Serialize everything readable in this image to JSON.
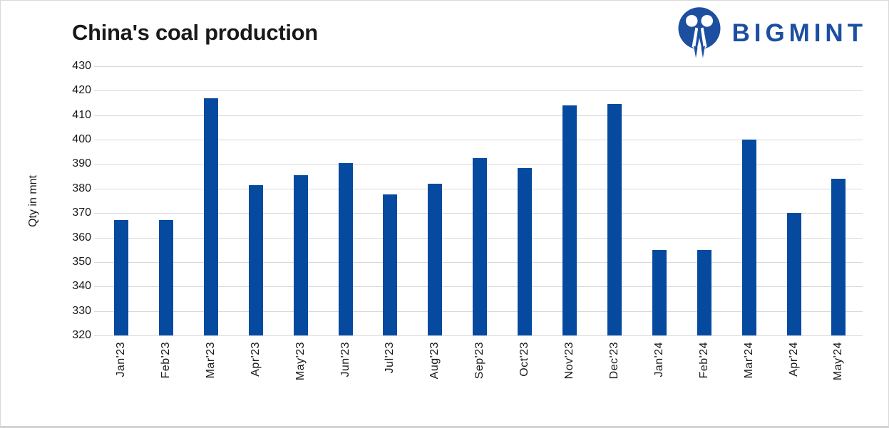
{
  "header": {
    "title": "China's coal production",
    "brand": "BIGMINT",
    "brand_color": "#1d4fa1",
    "logo_icon": "bigmint-people-m-mark"
  },
  "chart_data": {
    "type": "bar",
    "title": "China's coal production",
    "xlabel": "",
    "ylabel": "Qty in mnt",
    "ylim": [
      320,
      430
    ],
    "yticks": [
      430,
      420,
      410,
      400,
      390,
      380,
      370,
      360,
      350,
      340,
      330,
      320
    ],
    "grid": true,
    "legend": false,
    "bar_color": "#054a9f",
    "grid_color": "#d9d9d9",
    "categories": [
      "Jan'23",
      "Feb'23",
      "Mar'23",
      "Apr'23",
      "May'23",
      "Jun'23",
      "Jul'23",
      "Aug'23",
      "Sep'23",
      "Oct'23",
      "Nov'23",
      "Dec'23",
      "Jan'24",
      "Feb'24",
      "Mar'24",
      "Apr'24",
      "May'24"
    ],
    "values": [
      367,
      367,
      417,
      381.5,
      385.5,
      390.5,
      377.5,
      382,
      392.5,
      388.5,
      414,
      414.5,
      355,
      355,
      400,
      370,
      384
    ]
  }
}
